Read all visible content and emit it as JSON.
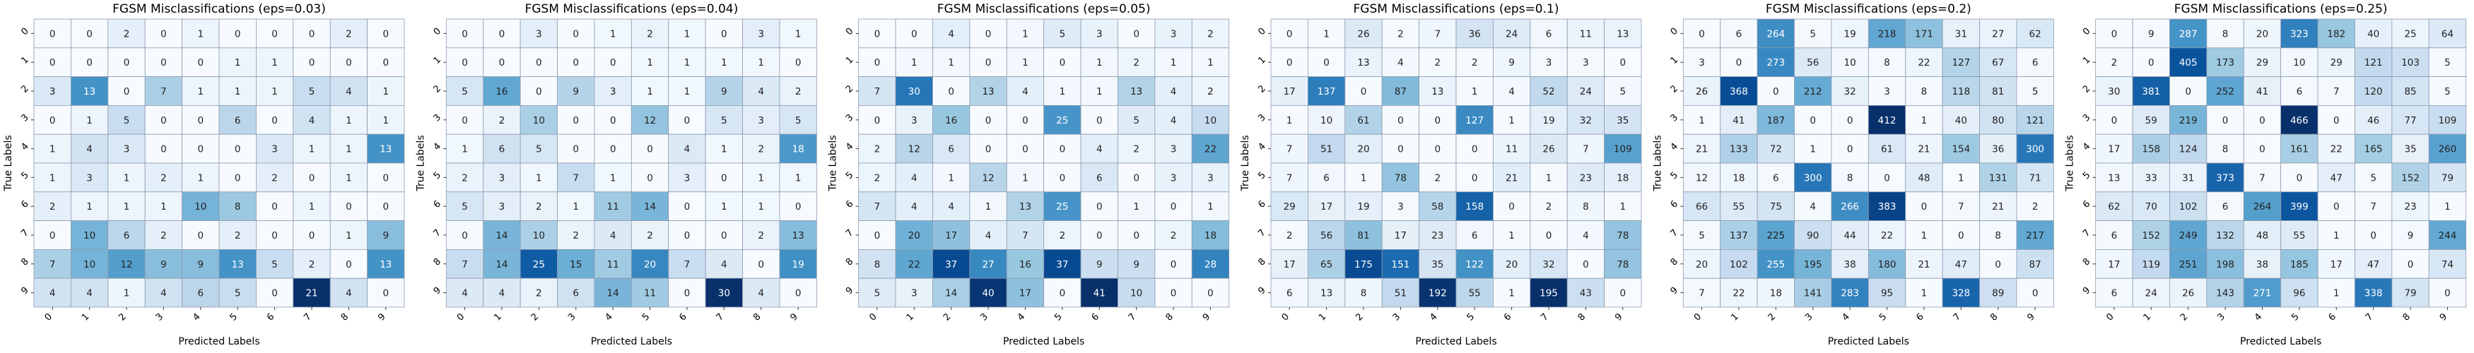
{
  "chart_data": [
    {
      "type": "heatmap",
      "title": "FGSM Misclassifications (eps=0.03)",
      "xlabel": "Predicted Labels",
      "ylabel": "True Labels",
      "x_ticks": [
        "0",
        "1",
        "2",
        "3",
        "4",
        "5",
        "6",
        "7",
        "8",
        "9"
      ],
      "y_ticks": [
        "0",
        "1",
        "2",
        "3",
        "4",
        "5",
        "6",
        "7",
        "8",
        "9"
      ],
      "colormap": "Blues",
      "gridlines": true,
      "values": [
        [
          0,
          0,
          2,
          0,
          1,
          0,
          0,
          0,
          2,
          0
        ],
        [
          0,
          0,
          0,
          0,
          0,
          1,
          1,
          0,
          0,
          0
        ],
        [
          3,
          13,
          0,
          7,
          1,
          1,
          1,
          5,
          4,
          1
        ],
        [
          0,
          1,
          5,
          0,
          0,
          6,
          0,
          4,
          1,
          1
        ],
        [
          1,
          4,
          3,
          0,
          0,
          0,
          3,
          1,
          1,
          13
        ],
        [
          1,
          3,
          1,
          2,
          1,
          0,
          2,
          0,
          1,
          0
        ],
        [
          2,
          1,
          1,
          1,
          10,
          8,
          0,
          1,
          0,
          0
        ],
        [
          0,
          10,
          6,
          2,
          0,
          2,
          0,
          0,
          1,
          9
        ],
        [
          7,
          10,
          12,
          9,
          9,
          13,
          5,
          2,
          0,
          13
        ],
        [
          4,
          4,
          1,
          4,
          6,
          5,
          0,
          21,
          4,
          0
        ]
      ]
    },
    {
      "type": "heatmap",
      "title": "FGSM Misclassifications (eps=0.04)",
      "xlabel": "Predicted Labels",
      "ylabel": "True Labels",
      "x_ticks": [
        "0",
        "1",
        "2",
        "3",
        "4",
        "5",
        "6",
        "7",
        "8",
        "9"
      ],
      "y_ticks": [
        "0",
        "1",
        "2",
        "3",
        "4",
        "5",
        "6",
        "7",
        "8",
        "9"
      ],
      "colormap": "Blues",
      "gridlines": true,
      "values": [
        [
          0,
          0,
          3,
          0,
          1,
          2,
          1,
          0,
          3,
          1
        ],
        [
          0,
          0,
          0,
          0,
          0,
          1,
          1,
          1,
          1,
          0
        ],
        [
          5,
          16,
          0,
          9,
          3,
          1,
          1,
          9,
          4,
          2
        ],
        [
          0,
          2,
          10,
          0,
          0,
          12,
          0,
          5,
          3,
          5
        ],
        [
          1,
          6,
          5,
          0,
          0,
          0,
          4,
          1,
          2,
          18
        ],
        [
          2,
          3,
          1,
          7,
          1,
          0,
          3,
          0,
          1,
          1
        ],
        [
          5,
          3,
          2,
          1,
          11,
          14,
          0,
          1,
          1,
          0
        ],
        [
          0,
          14,
          10,
          2,
          4,
          2,
          0,
          0,
          2,
          13
        ],
        [
          7,
          14,
          25,
          15,
          11,
          20,
          7,
          4,
          0,
          19
        ],
        [
          4,
          4,
          2,
          6,
          14,
          11,
          0,
          30,
          4,
          0
        ]
      ]
    },
    {
      "type": "heatmap",
      "title": "FGSM Misclassifications (eps=0.05)",
      "xlabel": "Predicted Labels",
      "ylabel": "True Labels",
      "x_ticks": [
        "0",
        "1",
        "2",
        "3",
        "4",
        "5",
        "6",
        "7",
        "8",
        "9"
      ],
      "y_ticks": [
        "0",
        "1",
        "2",
        "3",
        "4",
        "5",
        "6",
        "7",
        "8",
        "9"
      ],
      "colormap": "Blues",
      "gridlines": true,
      "values": [
        [
          0,
          0,
          4,
          0,
          1,
          5,
          3,
          0,
          3,
          2
        ],
        [
          0,
          1,
          1,
          0,
          1,
          0,
          1,
          2,
          1,
          1
        ],
        [
          7,
          30,
          0,
          13,
          4,
          1,
          1,
          13,
          4,
          2
        ],
        [
          0,
          3,
          16,
          0,
          0,
          25,
          0,
          5,
          4,
          10
        ],
        [
          2,
          12,
          6,
          0,
          0,
          0,
          4,
          2,
          3,
          22
        ],
        [
          2,
          4,
          1,
          12,
          1,
          0,
          6,
          0,
          3,
          3
        ],
        [
          7,
          4,
          4,
          1,
          13,
          25,
          0,
          1,
          0,
          1
        ],
        [
          0,
          20,
          17,
          4,
          7,
          2,
          0,
          0,
          2,
          18
        ],
        [
          8,
          22,
          37,
          27,
          16,
          37,
          9,
          9,
          0,
          28
        ],
        [
          5,
          3,
          14,
          40,
          17,
          0,
          41,
          10,
          0,
          0
        ]
      ]
    },
    {
      "type": "heatmap",
      "title": "FGSM Misclassifications (eps=0.1)",
      "xlabel": "Predicted Labels",
      "ylabel": "True Labels",
      "x_ticks": [
        "0",
        "1",
        "2",
        "3",
        "4",
        "5",
        "6",
        "7",
        "8",
        "9"
      ],
      "y_ticks": [
        "0",
        "1",
        "2",
        "3",
        "4",
        "5",
        "6",
        "7",
        "8",
        "9"
      ],
      "colormap": "Blues",
      "gridlines": true,
      "values": [
        [
          0,
          1,
          26,
          2,
          7,
          36,
          24,
          6,
          11,
          13
        ],
        [
          0,
          0,
          13,
          4,
          2,
          2,
          9,
          3,
          3,
          0
        ],
        [
          17,
          137,
          0,
          87,
          13,
          1,
          4,
          52,
          24,
          5
        ],
        [
          1,
          10,
          61,
          0,
          0,
          127,
          1,
          19,
          32,
          35
        ],
        [
          7,
          51,
          20,
          0,
          0,
          0,
          11,
          26,
          7,
          109
        ],
        [
          7,
          6,
          1,
          78,
          2,
          0,
          21,
          1,
          23,
          18
        ],
        [
          29,
          17,
          19,
          3,
          58,
          158,
          0,
          2,
          8,
          1
        ],
        [
          2,
          56,
          81,
          17,
          23,
          6,
          1,
          0,
          4,
          78
        ],
        [
          17,
          65,
          175,
          151,
          35,
          122,
          20,
          32,
          0,
          78
        ],
        [
          6,
          13,
          8,
          51,
          192,
          55,
          1,
          195,
          43,
          0
        ]
      ]
    },
    {
      "type": "heatmap",
      "title": "FGSM Misclassifications (eps=0.2)",
      "xlabel": "Predicted Labels",
      "ylabel": "True Labels",
      "x_ticks": [
        "0",
        "1",
        "2",
        "3",
        "4",
        "5",
        "6",
        "7",
        "8",
        "9"
      ],
      "y_ticks": [
        "0",
        "1",
        "2",
        "3",
        "4",
        "5",
        "6",
        "7",
        "8",
        "9"
      ],
      "colormap": "Blues",
      "gridlines": true,
      "values": [
        [
          0,
          6,
          264,
          5,
          19,
          218,
          171,
          31,
          27,
          62
        ],
        [
          3,
          0,
          273,
          56,
          10,
          8,
          22,
          127,
          67,
          6
        ],
        [
          26,
          368,
          0,
          212,
          32,
          3,
          8,
          118,
          81,
          5
        ],
        [
          1,
          41,
          187,
          0,
          0,
          412,
          1,
          40,
          80,
          121
        ],
        [
          21,
          133,
          72,
          1,
          0,
          61,
          21,
          154,
          36,
          300
        ],
        [
          12,
          18,
          6,
          300,
          8,
          0,
          48,
          1,
          131,
          71
        ],
        [
          66,
          55,
          75,
          4,
          266,
          383,
          0,
          7,
          21,
          2
        ],
        [
          5,
          137,
          225,
          90,
          44,
          22,
          1,
          0,
          8,
          217
        ],
        [
          20,
          102,
          255,
          195,
          38,
          180,
          21,
          47,
          0,
          87
        ],
        [
          7,
          22,
          18,
          141,
          283,
          95,
          1,
          328,
          89,
          0
        ]
      ]
    },
    {
      "type": "heatmap",
      "title": "FGSM Misclassifications (eps=0.25)",
      "xlabel": "Predicted Labels",
      "ylabel": "True Labels",
      "x_ticks": [
        "0",
        "1",
        "2",
        "3",
        "4",
        "5",
        "6",
        "7",
        "8",
        "9"
      ],
      "y_ticks": [
        "0",
        "1",
        "2",
        "3",
        "4",
        "5",
        "6",
        "7",
        "8",
        "9"
      ],
      "colormap": "Blues",
      "gridlines": true,
      "values": [
        [
          0,
          9,
          287,
          8,
          20,
          323,
          182,
          40,
          25,
          64
        ],
        [
          2,
          0,
          405,
          173,
          29,
          10,
          29,
          121,
          103,
          5
        ],
        [
          30,
          381,
          0,
          252,
          41,
          6,
          7,
          120,
          85,
          5
        ],
        [
          0,
          59,
          219,
          0,
          0,
          466,
          0,
          46,
          77,
          109
        ],
        [
          17,
          158,
          124,
          8,
          0,
          161,
          22,
          165,
          35,
          260
        ],
        [
          13,
          33,
          31,
          373,
          7,
          0,
          47,
          5,
          152,
          79
        ],
        [
          62,
          70,
          102,
          6,
          264,
          399,
          0,
          7,
          23,
          1
        ],
        [
          6,
          152,
          249,
          132,
          48,
          55,
          1,
          0,
          9,
          244
        ],
        [
          17,
          119,
          251,
          198,
          38,
          185,
          17,
          47,
          0,
          74
        ],
        [
          6,
          24,
          26,
          143,
          271,
          96,
          1,
          338,
          79,
          0
        ]
      ]
    }
  ]
}
